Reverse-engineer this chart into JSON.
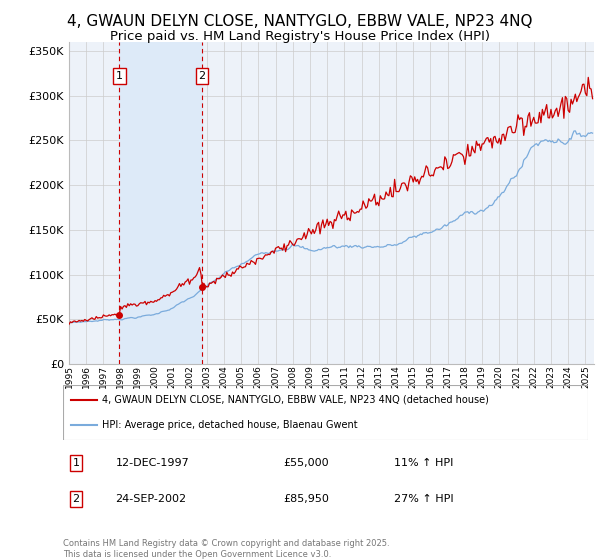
{
  "title": "4, GWAUN DELYN CLOSE, NANTYGLO, EBBW VALE, NP23 4NQ",
  "subtitle": "Price paid vs. HM Land Registry's House Price Index (HPI)",
  "ylim": [
    0,
    360000
  ],
  "xlim_start": 1995.0,
  "xlim_end": 2025.5,
  "yticks": [
    0,
    50000,
    100000,
    150000,
    200000,
    250000,
    300000,
    350000
  ],
  "ytick_labels": [
    "£0",
    "£50K",
    "£100K",
    "£150K",
    "£200K",
    "£250K",
    "£300K",
    "£350K"
  ],
  "transactions": [
    {
      "num": 1,
      "date": "12-DEC-1997",
      "price": 55000,
      "pct": "11%",
      "dir": "↑",
      "year": 1997.92
    },
    {
      "num": 2,
      "date": "24-SEP-2002",
      "price": 85950,
      "pct": "27%",
      "dir": "↑",
      "year": 2002.72
    }
  ],
  "legend_label_red": "4, GWAUN DELYN CLOSE, NANTYGLO, EBBW VALE, NP23 4NQ (detached house)",
  "legend_label_blue": "HPI: Average price, detached house, Blaenau Gwent",
  "copyright_text": "Contains HM Land Registry data © Crown copyright and database right 2025.\nThis data is licensed under the Open Government Licence v3.0.",
  "red_color": "#cc0000",
  "blue_color": "#7aabdc",
  "shade_color": "#ddeaf8",
  "background_color": "#edf2f9",
  "grid_color": "#cccccc",
  "title_fontsize": 11,
  "subtitle_fontsize": 9.5
}
